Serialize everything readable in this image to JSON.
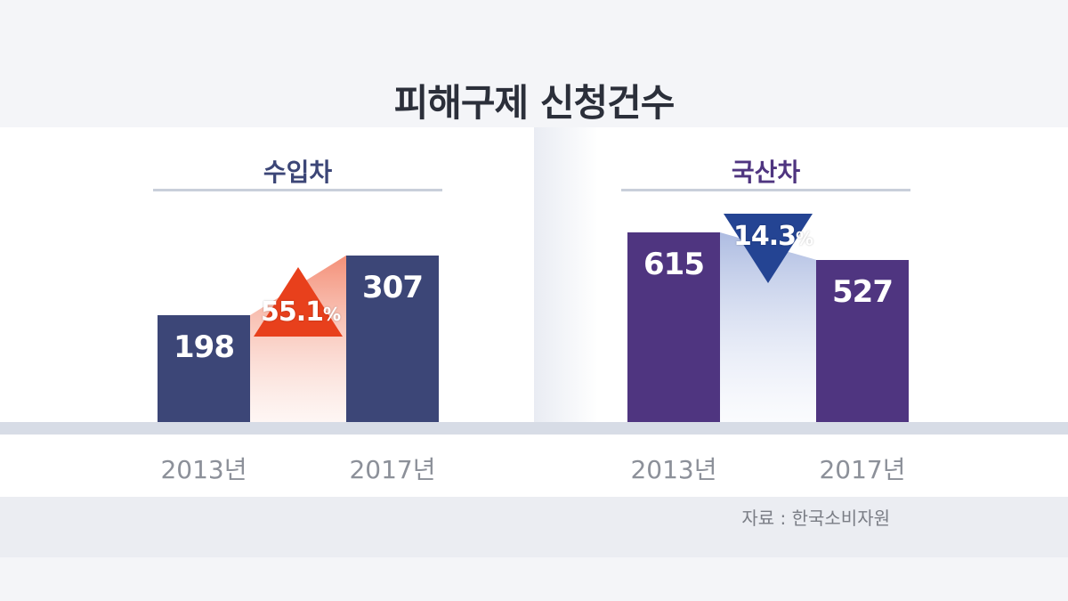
{
  "title": "피해구제 신청건수",
  "source": "자료 : 한국소비자원",
  "chart_data": [
    {
      "type": "bar",
      "title": "수입차",
      "categories": [
        "2013년",
        "2017년"
      ],
      "values": [
        198,
        307
      ],
      "change": "55.1",
      "change_direction": "up",
      "colors": {
        "bar": "#3c4677",
        "title": "#3c4677",
        "change": "#e8401c"
      }
    },
    {
      "type": "bar",
      "title": "국산차",
      "categories": [
        "2013년",
        "2017년"
      ],
      "values": [
        615,
        527
      ],
      "change": "14.3",
      "change_direction": "down",
      "colors": {
        "bar": "#4f3580",
        "title": "#4f3580",
        "change": "#244493"
      }
    }
  ]
}
